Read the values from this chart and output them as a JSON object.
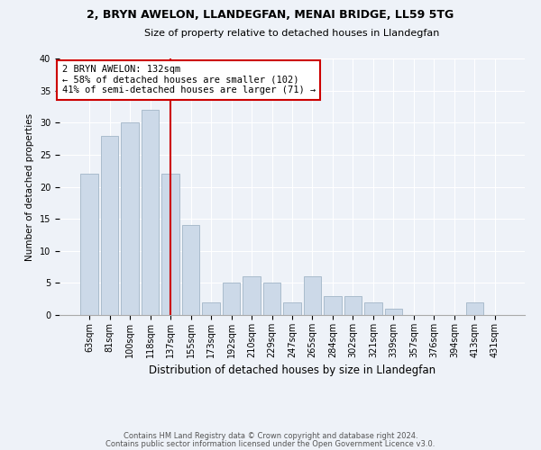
{
  "title1": "2, BRYN AWELON, LLANDEGFAN, MENAI BRIDGE, LL59 5TG",
  "title2": "Size of property relative to detached houses in Llandegfan",
  "xlabel": "Distribution of detached houses by size in Llandegfan",
  "ylabel": "Number of detached properties",
  "categories": [
    "63sqm",
    "81sqm",
    "100sqm",
    "118sqm",
    "137sqm",
    "155sqm",
    "173sqm",
    "192sqm",
    "210sqm",
    "229sqm",
    "247sqm",
    "265sqm",
    "284sqm",
    "302sqm",
    "321sqm",
    "339sqm",
    "357sqm",
    "376sqm",
    "394sqm",
    "413sqm",
    "431sqm"
  ],
  "values": [
    22,
    28,
    30,
    32,
    22,
    14,
    2,
    5,
    6,
    5,
    2,
    6,
    3,
    3,
    2,
    1,
    0,
    0,
    0,
    2,
    0
  ],
  "bar_color": "#ccd9e8",
  "bar_edge_color": "#aabccc",
  "vline_x_index": 4,
  "vline_color": "#cc0000",
  "annotation_text": "2 BRYN AWELON: 132sqm\n← 58% of detached houses are smaller (102)\n41% of semi-detached houses are larger (71) →",
  "annotation_box_color": "#ffffff",
  "annotation_box_edge_color": "#cc0000",
  "footer1": "Contains HM Land Registry data © Crown copyright and database right 2024.",
  "footer2": "Contains public sector information licensed under the Open Government Licence v3.0.",
  "bg_color": "#eef2f8",
  "plot_bg_color": "#eef2f8",
  "ylim": [
    0,
    40
  ],
  "yticks": [
    0,
    5,
    10,
    15,
    20,
    25,
    30,
    35,
    40
  ],
  "title1_fontsize": 9,
  "title2_fontsize": 8,
  "xlabel_fontsize": 8.5,
  "ylabel_fontsize": 7.5,
  "tick_fontsize": 7,
  "footer_fontsize": 6,
  "annot_fontsize": 7.5
}
